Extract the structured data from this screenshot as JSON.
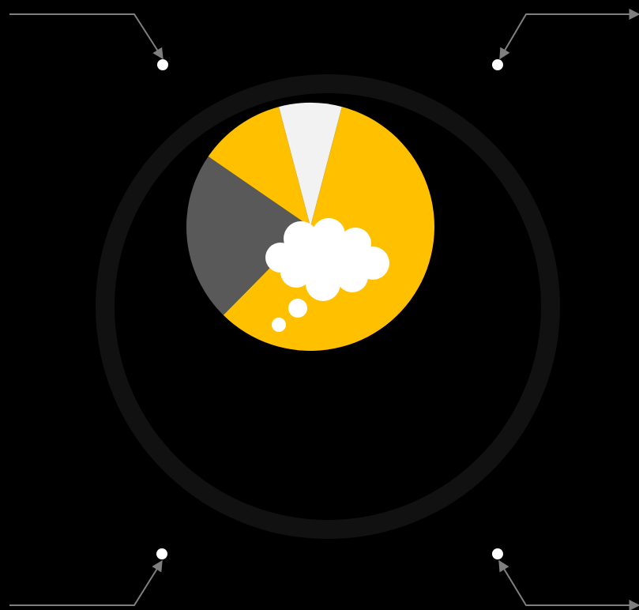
{
  "colors": {
    "background": "#000000",
    "outer_ring": "#111111",
    "primary_slice": "#FFC000",
    "secondary_slice": "#595959",
    "tertiary_slice": "#F2F2F2",
    "callout_line": "#7F7F7F",
    "callout_dot": "#FFFFFF",
    "thought_cloud": "#FFFFFF"
  },
  "icons": {
    "thought_bubble": "thought-cloud-icon"
  },
  "pie": {
    "slices": [
      {
        "color_key": "tertiary_slice",
        "fraction": 0.082
      },
      {
        "color_key": "primary_slice",
        "fraction": 0.583
      },
      {
        "color_key": "secondary_slice",
        "fraction": 0.222
      },
      {
        "color_key": "primary_slice",
        "fraction": 0.113
      }
    ]
  }
}
